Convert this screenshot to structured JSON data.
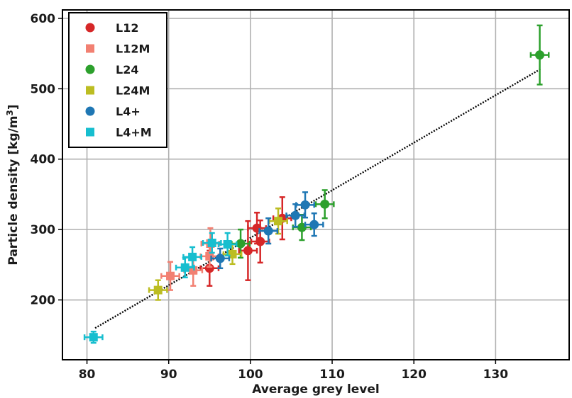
{
  "chart_data": {
    "type": "scatter",
    "xlabel": "Average grey level",
    "ylabel_main": "Particle density [kg/m",
    "ylabel_sup": "3",
    "ylabel_end": "]",
    "xlim": [
      77,
      139
    ],
    "ylim": [
      115,
      612
    ],
    "xticks": [
      80,
      90,
      100,
      110,
      120,
      130
    ],
    "yticks": [
      200,
      300,
      400,
      500,
      600
    ],
    "grid": true,
    "legend_position": "top-left",
    "fit_line": {
      "x": [
        81,
        135.5
      ],
      "y": [
        160,
        528
      ],
      "style": "dotted",
      "color": "#000000"
    },
    "series": [
      {
        "name": "L12",
        "marker": "circle",
        "color": "#d62728",
        "points": [
          {
            "x": 95.0,
            "y": 245,
            "xerr": 1.1,
            "yerr": 25
          },
          {
            "x": 99.7,
            "y": 270,
            "xerr": 1.1,
            "yerr": 42
          },
          {
            "x": 101.2,
            "y": 283,
            "xerr": 1.1,
            "yerr": 30
          },
          {
            "x": 100.8,
            "y": 302,
            "xerr": 1.1,
            "yerr": 22
          },
          {
            "x": 103.9,
            "y": 316,
            "xerr": 1.1,
            "yerr": 30
          }
        ]
      },
      {
        "name": "L12M",
        "marker": "square",
        "color": "#f28072",
        "points": [
          {
            "x": 90.2,
            "y": 234,
            "xerr": 1.1,
            "yerr": 20
          },
          {
            "x": 93.0,
            "y": 242,
            "xerr": 1.1,
            "yerr": 22
          },
          {
            "x": 95.0,
            "y": 262,
            "xerr": 1.1,
            "yerr": 15
          },
          {
            "x": 95.1,
            "y": 280,
            "xerr": 1.1,
            "yerr": 22
          }
        ]
      },
      {
        "name": "L24",
        "marker": "circle",
        "color": "#2ca02c",
        "points": [
          {
            "x": 98.8,
            "y": 280,
            "xerr": 1.1,
            "yerr": 20
          },
          {
            "x": 106.3,
            "y": 303,
            "xerr": 1.1,
            "yerr": 18
          },
          {
            "x": 109.1,
            "y": 336,
            "xerr": 1.1,
            "yerr": 20
          },
          {
            "x": 135.4,
            "y": 548,
            "xerr": 1.1,
            "yerr": 42
          }
        ]
      },
      {
        "name": "L24M",
        "marker": "square",
        "color": "#bcbd22",
        "points": [
          {
            "x": 88.7,
            "y": 214,
            "xerr": 1.1,
            "yerr": 14
          },
          {
            "x": 97.8,
            "y": 265,
            "xerr": 1.1,
            "yerr": 14
          },
          {
            "x": 103.4,
            "y": 312,
            "xerr": 1.1,
            "yerr": 18
          }
        ]
      },
      {
        "name": "L4+",
        "marker": "circle",
        "color": "#1f77b4",
        "points": [
          {
            "x": 96.3,
            "y": 259,
            "xerr": 1.1,
            "yerr": 14
          },
          {
            "x": 102.2,
            "y": 298,
            "xerr": 1.1,
            "yerr": 18
          },
          {
            "x": 105.5,
            "y": 320,
            "xerr": 1.1,
            "yerr": 16
          },
          {
            "x": 106.7,
            "y": 335,
            "xerr": 1.1,
            "yerr": 18
          },
          {
            "x": 107.8,
            "y": 307,
            "xerr": 1.1,
            "yerr": 16
          }
        ]
      },
      {
        "name": "L4+M",
        "marker": "square",
        "color": "#17becf",
        "points": [
          {
            "x": 80.8,
            "y": 147,
            "xerr": 1.1,
            "yerr": 8
          },
          {
            "x": 92.0,
            "y": 246,
            "xerr": 1.1,
            "yerr": 14
          },
          {
            "x": 92.9,
            "y": 261,
            "xerr": 1.1,
            "yerr": 14
          },
          {
            "x": 95.3,
            "y": 281,
            "xerr": 1.1,
            "yerr": 14
          },
          {
            "x": 97.2,
            "y": 279,
            "xerr": 1.1,
            "yerr": 16
          }
        ]
      }
    ]
  }
}
